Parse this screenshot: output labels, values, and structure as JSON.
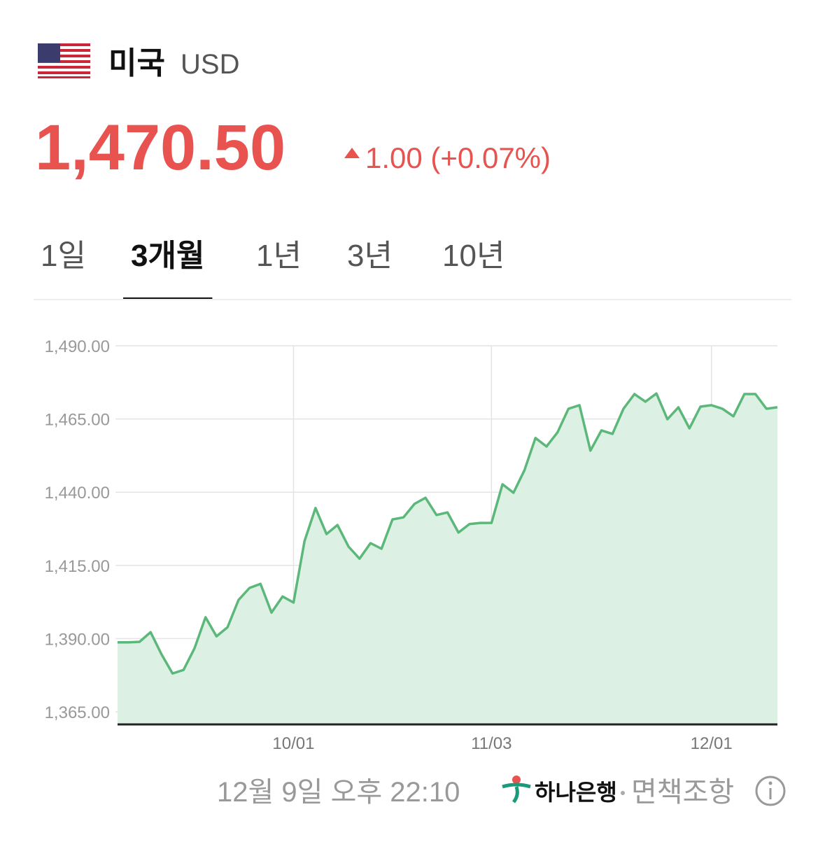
{
  "header": {
    "country": "미국",
    "currency": "USD",
    "price": "1,470.50",
    "change": "1.00 (+0.07%)"
  },
  "tabs": {
    "items": [
      "1일",
      "3개월",
      "1년",
      "3년",
      "10년"
    ],
    "active": 1
  },
  "footer": {
    "timestamp": "12월 9일 오후 22:10",
    "bank": "하나은행",
    "disclaimer": "면책조항"
  },
  "chart_data": {
    "type": "area",
    "color": "#5cb87a",
    "fill": "#dcf0e3",
    "grid": true,
    "categories": [
      null,
      null,
      null,
      null,
      null,
      null,
      null,
      null,
      null,
      null,
      null,
      null,
      null,
      null,
      null,
      null,
      "10/01",
      null,
      null,
      null,
      null,
      null,
      null,
      null,
      null,
      null,
      null,
      null,
      null,
      null,
      null,
      null,
      null,
      null,
      "11/03",
      null,
      null,
      null,
      null,
      null,
      null,
      null,
      null,
      null,
      null,
      null,
      null,
      null,
      null,
      null,
      null,
      null,
      null,
      null,
      "12/01",
      null,
      null,
      null,
      null,
      null,
      null
    ],
    "values": [
      1388.7,
      1388.7,
      1388.9,
      1392.2,
      1384.6,
      1378.1,
      1379.3,
      1386.7,
      1397.3,
      1390.8,
      1393.9,
      1403.2,
      1407.3,
      1408.7,
      1398.9,
      1404.4,
      1402.3,
      1423.3,
      1434.6,
      1425.7,
      1428.8,
      1421.4,
      1417.3,
      1422.6,
      1420.7,
      1430.7,
      1431.4,
      1436.0,
      1438.1,
      1432.2,
      1433.1,
      1426.2,
      1429.1,
      1429.5,
      1429.5,
      1442.7,
      1439.8,
      1447.5,
      1458.5,
      1455.6,
      1460.4,
      1468.5,
      1469.7,
      1454.2,
      1461.1,
      1459.9,
      1468.5,
      1473.5,
      1470.9,
      1473.7,
      1464.9,
      1469.0,
      1461.8,
      1469.2,
      1469.7,
      1468.5,
      1465.9,
      1473.5,
      1473.5,
      1468.5,
      1469.0
    ],
    "ylim": [
      1360.7,
      1490
    ],
    "yticks": [
      {
        "value": 1365,
        "label": "1,365.00"
      },
      {
        "value": 1390,
        "label": "1,390.00"
      },
      {
        "value": 1415,
        "label": "1,415.00"
      },
      {
        "value": 1440,
        "label": "1,440.00"
      },
      {
        "value": 1465,
        "label": "1,465.00"
      },
      {
        "value": 1490,
        "label": "1,490.00"
      }
    ]
  }
}
